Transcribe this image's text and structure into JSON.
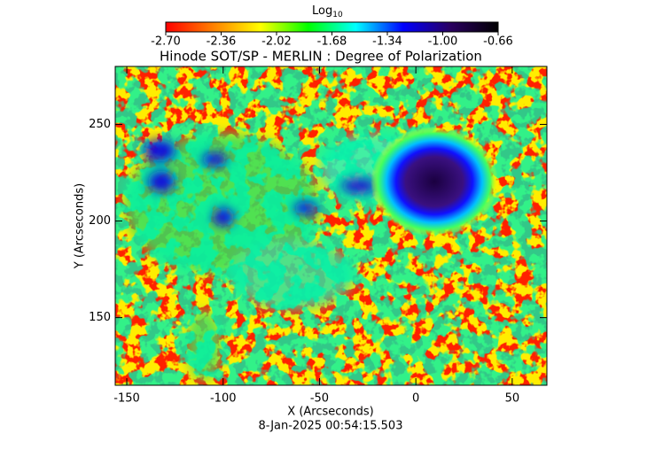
{
  "chart_data": {
    "type": "heatmap",
    "title": "Hinode SOT/SP - MERLIN : Degree of Polarization",
    "xlabel": "X (Arcseconds)",
    "ylabel": "Y (Arcseconds)",
    "footer": "8-Jan-2025 00:54:15.503",
    "xlim": [
      -156,
      68
    ],
    "ylim": [
      115,
      280
    ],
    "xticks": [
      -150,
      -100,
      -50,
      0,
      50
    ],
    "yticks": [
      150,
      200,
      250
    ],
    "colorbar": {
      "label": "Log",
      "label_subscript": "10",
      "lim": [
        -2.7,
        -0.66
      ],
      "ticks": [
        {
          "value": -2.7,
          "label": "-2.70"
        },
        -2.36,
        -2.02,
        -1.68,
        -1.34,
        {
          "value": -1.0,
          "label": "-1.00"
        },
        -0.66
      ],
      "colormap": [
        "#ff0000",
        "#ff8000",
        "#ffff00",
        "#00ff00",
        "#00ffff",
        "#0000ff",
        "#2a0060",
        "#000000"
      ]
    }
  }
}
